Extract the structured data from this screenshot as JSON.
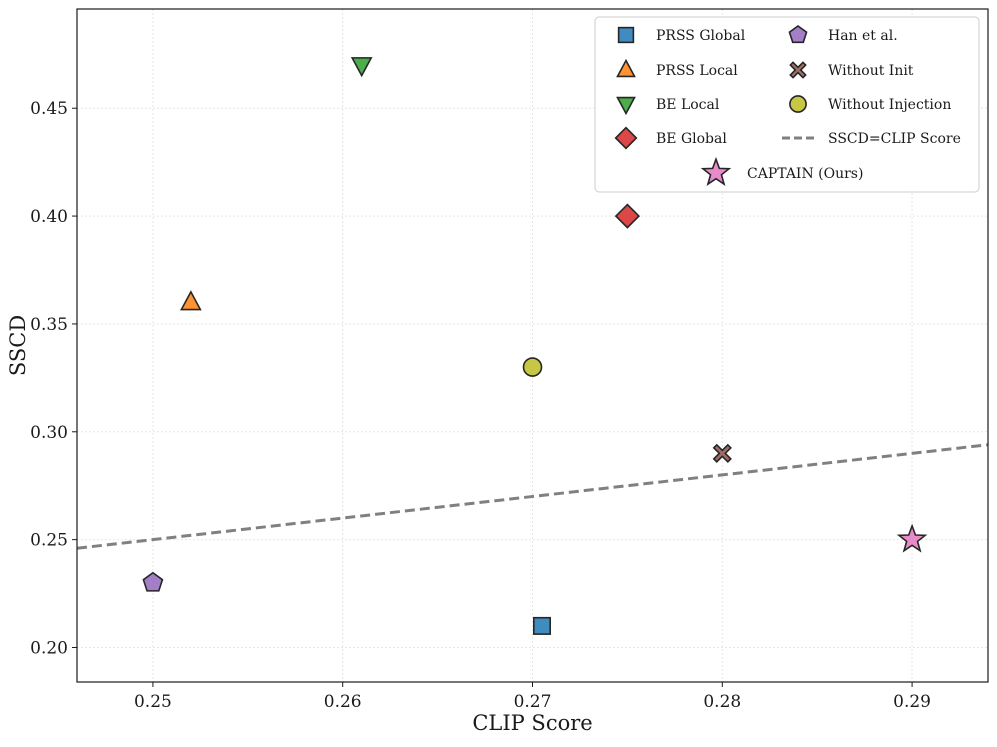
{
  "chart_data": {
    "type": "scatter",
    "title": "",
    "xlabel": "CLIP Score",
    "ylabel": "SSCD",
    "xlim": [
      0.246,
      0.294
    ],
    "ylim": [
      0.184,
      0.496
    ],
    "x_ticks": [
      0.25,
      0.26,
      0.27,
      0.28,
      0.29
    ],
    "x_tick_labels": [
      "0.25",
      "0.26",
      "0.27",
      "0.28",
      "0.29"
    ],
    "y_ticks": [
      0.2,
      0.25,
      0.3,
      0.35,
      0.4,
      0.45
    ],
    "y_tick_labels": [
      "0.20",
      "0.25",
      "0.30",
      "0.35",
      "0.40",
      "0.45"
    ],
    "grid": true,
    "legend_position": "top-right",
    "series": [
      {
        "name": "PRSS Global",
        "x": 0.2705,
        "y": 0.21,
        "marker": "square",
        "color": "#1f77b4"
      },
      {
        "name": "PRSS Local",
        "x": 0.252,
        "y": 0.36,
        "marker": "triangle-up",
        "color": "#ff7f0e"
      },
      {
        "name": "BE Local",
        "x": 0.261,
        "y": 0.47,
        "marker": "triangle-down",
        "color": "#2ca02c"
      },
      {
        "name": "BE Global",
        "x": 0.275,
        "y": 0.4,
        "marker": "diamond",
        "color": "#d62728"
      },
      {
        "name": "Han et al.",
        "x": 0.25,
        "y": 0.23,
        "marker": "pentagon",
        "color": "#9467bd"
      },
      {
        "name": "Without Init",
        "x": 0.28,
        "y": 0.29,
        "marker": "x-filled",
        "color": "#8c564b"
      },
      {
        "name": "Without Injection",
        "x": 0.27,
        "y": 0.33,
        "marker": "circle",
        "color": "#bcbd22"
      },
      {
        "name": "CAPTAIN (Ours)",
        "x": 0.29,
        "y": 0.25,
        "marker": "star",
        "color": "#e377c2"
      }
    ],
    "reference_line": {
      "name": "SSCD=CLIP Score",
      "style": "dashed",
      "color": "#808080"
    }
  }
}
